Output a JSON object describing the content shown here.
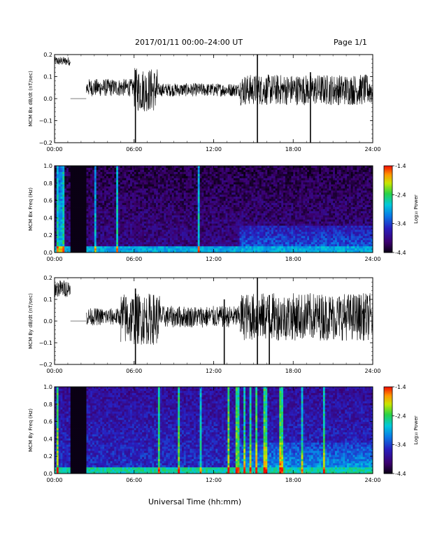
{
  "header": {
    "date_range": "2017/01/11  00:00–24:00 UT",
    "page": "Page 1/1"
  },
  "xlabel": "Universal Time (hh:mm)",
  "colorbar": {
    "label": "Log₁₀ Power",
    "ticks": [
      "-1.4",
      "-2.4",
      "-3.4",
      "-4.4"
    ]
  },
  "chart_data": [
    {
      "type": "line",
      "ylabel": "MCM Bx dB/dt (nT/sec)",
      "xlim_hours": [
        0,
        24
      ],
      "x_ticks": [
        "00:00",
        "06:00",
        "12:00",
        "18:00",
        "24:00"
      ],
      "ylim": [
        -0.2,
        0.2
      ],
      "y_ticks": [
        "0.2",
        "0.1",
        "0.0",
        "−0.1",
        "−0.2"
      ],
      "segments": [
        {
          "x_start": 0.0,
          "x_end": 1.2,
          "center": 0.17,
          "amplitude": 0.02
        },
        {
          "x_start": 1.2,
          "x_end": 2.4,
          "center": 0.0,
          "amplitude": 0.0
        },
        {
          "x_start": 2.4,
          "x_end": 6.0,
          "center": 0.05,
          "amplitude": 0.04
        },
        {
          "x_start": 6.0,
          "x_end": 7.8,
          "center": 0.04,
          "amplitude": 0.1
        },
        {
          "x_start": 7.8,
          "x_end": 14.0,
          "center": 0.04,
          "amplitude": 0.03
        },
        {
          "x_start": 14.0,
          "x_end": 24.0,
          "center": 0.04,
          "amplitude": 0.07
        }
      ],
      "spikes": [
        {
          "x": 6.1,
          "y_min": -0.2,
          "y_max": 0.13
        },
        {
          "x": 15.3,
          "y_min": -0.2,
          "y_max": 0.2
        },
        {
          "x": 19.3,
          "y_min": -0.2,
          "y_max": 0.12
        }
      ]
    },
    {
      "type": "heatmap",
      "ylabel": "MCM Bx Freq (Hz)",
      "xlim_hours": [
        0,
        24
      ],
      "x_ticks": [
        "00:00",
        "06:00",
        "12:00",
        "18:00",
        "24:00"
      ],
      "ylim": [
        0.0,
        1.0
      ],
      "y_ticks": [
        "1.0",
        "0.8",
        "0.6",
        "0.4",
        "0.2",
        "0.0"
      ],
      "zlim": [
        -4.4,
        -1.4
      ],
      "zlabel": "Log₁₀ Power",
      "gap": [
        1.2,
        2.4
      ],
      "baseline_power": -3.9,
      "low_freq_power": -2.9,
      "late_enhancement": {
        "x_start": 14.0,
        "x_end": 24.0,
        "power": -3.2,
        "freq_max": 0.3
      },
      "bright_columns": [
        0.3,
        0.6,
        3.1,
        4.7,
        10.9
      ]
    },
    {
      "type": "line",
      "ylabel": "MCM By dB/dt (nT/sec)",
      "xlim_hours": [
        0,
        24
      ],
      "x_ticks": [
        "00:00",
        "06:00",
        "12:00",
        "18:00",
        "24:00"
      ],
      "ylim": [
        -0.2,
        0.2
      ],
      "y_ticks": [
        "0.2",
        "0.1",
        "0.0",
        "−0.1",
        "−0.2"
      ],
      "segments": [
        {
          "x_start": 0.0,
          "x_end": 1.2,
          "center": 0.15,
          "amplitude": 0.04
        },
        {
          "x_start": 1.2,
          "x_end": 2.4,
          "center": 0.0,
          "amplitude": 0.0
        },
        {
          "x_start": 2.4,
          "x_end": 5.0,
          "center": 0.02,
          "amplitude": 0.04
        },
        {
          "x_start": 5.0,
          "x_end": 8.0,
          "center": 0.01,
          "amplitude": 0.12
        },
        {
          "x_start": 8.0,
          "x_end": 14.0,
          "center": 0.02,
          "amplitude": 0.05
        },
        {
          "x_start": 14.0,
          "x_end": 24.0,
          "center": 0.02,
          "amplitude": 0.11
        }
      ],
      "spikes": [
        {
          "x": 6.1,
          "y_min": -0.2,
          "y_max": 0.15
        },
        {
          "x": 12.8,
          "y_min": -0.2,
          "y_max": 0.1
        },
        {
          "x": 15.3,
          "y_min": -0.2,
          "y_max": 0.2
        },
        {
          "x": 16.2,
          "y_min": -0.2,
          "y_max": 0.12
        }
      ]
    },
    {
      "type": "heatmap",
      "ylabel": "MCM By Freq (Hz)",
      "xlim_hours": [
        0,
        24
      ],
      "x_ticks": [
        "00:00",
        "06:00",
        "12:00",
        "18:00",
        "24:00"
      ],
      "ylim": [
        0.0,
        1.0
      ],
      "y_ticks": [
        "1.0",
        "0.8",
        "0.6",
        "0.4",
        "0.2",
        "0.0"
      ],
      "zlim": [
        -4.4,
        -1.4
      ],
      "zlabel": "Log₁₀ Power",
      "gap": [
        1.2,
        2.4
      ],
      "baseline_power": -3.5,
      "low_freq_power": -2.6,
      "late_enhancement": {
        "x_start": 14.0,
        "x_end": 24.0,
        "power": -2.9,
        "freq_max": 0.35
      },
      "bright_columns": [
        0.2,
        7.9,
        9.4,
        11.0,
        13.1,
        13.8,
        14.3,
        14.8,
        15.2,
        15.9,
        17.1,
        18.7,
        20.3
      ]
    }
  ]
}
